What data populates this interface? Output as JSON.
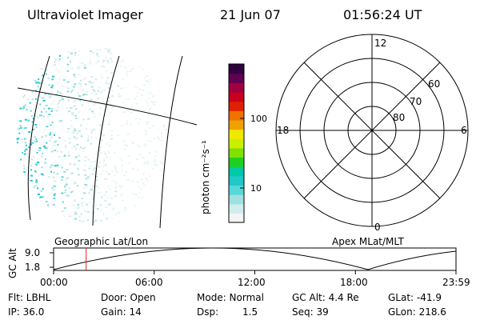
{
  "header": {
    "instrument": "Ultraviolet Imager",
    "date": "21 Jun 07",
    "time": "01:56:24 UT"
  },
  "colorbar": {
    "unit_label": "photon cm⁻²s⁻¹",
    "ticks": [
      {
        "label": "100",
        "value": 100
      },
      {
        "label": "10",
        "value": 10
      }
    ],
    "scale": "log",
    "colors": [
      "#f4f4f4",
      "#d0ecec",
      "#a0e0e0",
      "#58d8d8",
      "#20c8c8",
      "#00c8a8",
      "#20d020",
      "#80e000",
      "#c8f000",
      "#f0e800",
      "#f0a000",
      "#f07000",
      "#e02000",
      "#c80020",
      "#a00040",
      "#600050",
      "#300040"
    ]
  },
  "polar_plot": {
    "hour_labels": [
      {
        "label": "12",
        "mlt": 12
      },
      {
        "label": "18",
        "mlt": 18
      },
      {
        "label": "6",
        "mlt": 6
      },
      {
        "label": "0",
        "mlt": 0
      }
    ],
    "lat_labels": [
      {
        "label": "60",
        "lat": 60
      },
      {
        "label": "70",
        "lat": 70
      },
      {
        "label": "80",
        "lat": 80
      }
    ],
    "lat_circles": [
      50,
      60,
      70,
      80
    ]
  },
  "timeline": {
    "left_label": "Geographic Lat/Lon",
    "right_label": "Apex MLat/MLT",
    "y_axis_label": "GC Alt",
    "y_ticks": [
      "9.0",
      "1.8"
    ],
    "x_ticks": [
      "00:00",
      "06:00",
      "12:00",
      "18:00",
      "23:59"
    ],
    "current_time_hours": 1.94,
    "marker_color": "#e02020"
  },
  "info": {
    "flt": "Flt: LBHL",
    "door": "Door: Open",
    "mode": "Mode: Normal",
    "gc_alt": "GC Alt: 4.4 Re",
    "glat": "GLat: -41.9",
    "ip": "IP: 36.0",
    "gain": "Gain: 14",
    "dsp_label": "Dsp:",
    "dsp_value": "1.5",
    "seq": "Seq: 39",
    "glon": "GLon: 218.6"
  }
}
